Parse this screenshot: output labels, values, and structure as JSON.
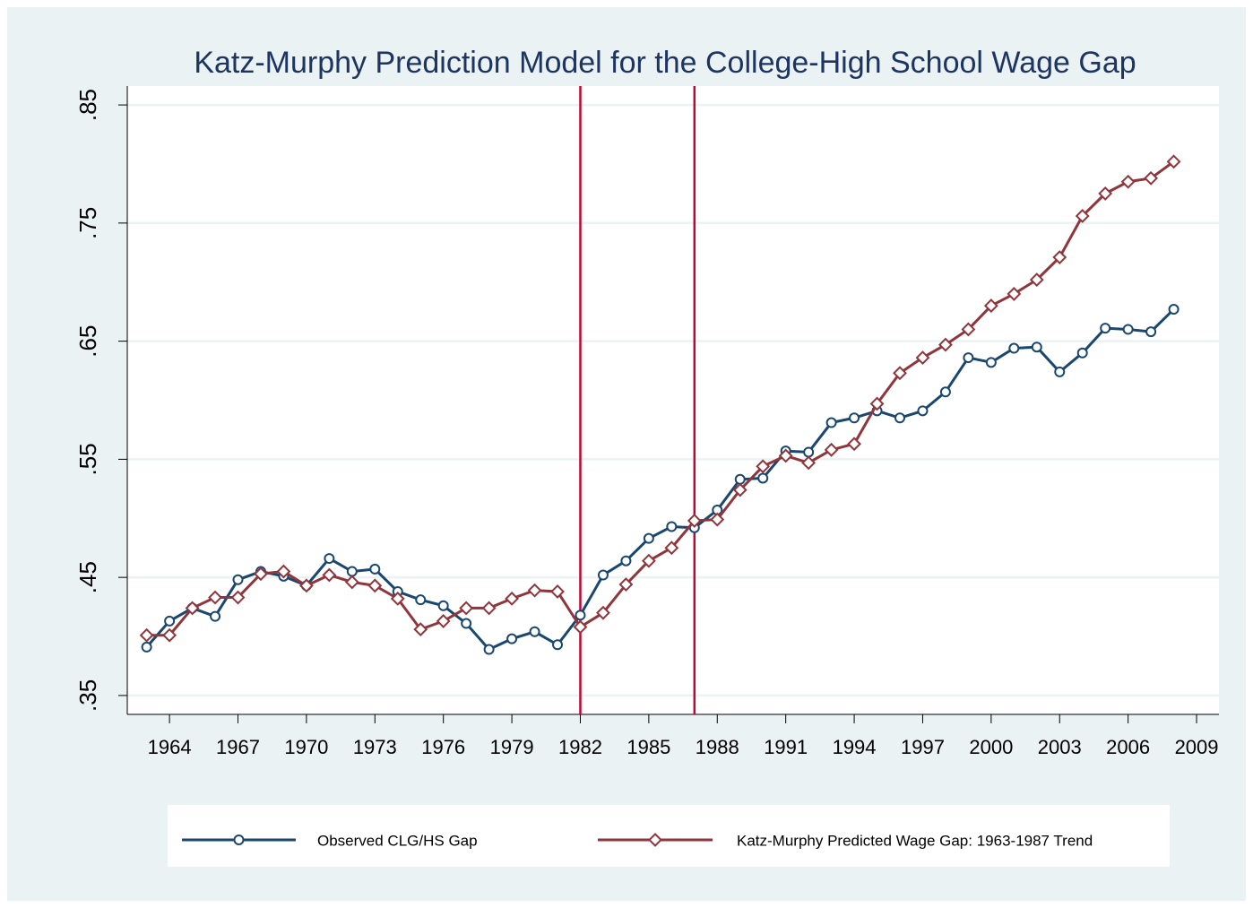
{
  "chart_data": {
    "type": "line",
    "title": "Katz-Murphy Prediction Model for the College-High School Wage Gap",
    "x": [
      1963,
      1964,
      1965,
      1966,
      1967,
      1968,
      1969,
      1970,
      1971,
      1972,
      1973,
      1974,
      1975,
      1976,
      1977,
      1978,
      1979,
      1980,
      1981,
      1982,
      1983,
      1984,
      1985,
      1986,
      1987,
      1988,
      1989,
      1990,
      1991,
      1992,
      1993,
      1994,
      1995,
      1996,
      1997,
      1998,
      1999,
      2000,
      2001,
      2002,
      2003,
      2004,
      2005,
      2006,
      2007,
      2008
    ],
    "series": [
      {
        "name": "Observed CLG/HS Gap",
        "color": "#1a476f",
        "marker": "circle",
        "values": [
          0.391,
          0.413,
          0.424,
          0.417,
          0.448,
          0.455,
          0.451,
          0.443,
          0.466,
          0.455,
          0.457,
          0.438,
          0.431,
          0.426,
          0.411,
          0.389,
          0.398,
          0.404,
          0.393,
          0.418,
          0.452,
          0.464,
          0.483,
          0.493,
          0.492,
          0.507,
          0.533,
          0.534,
          0.557,
          0.556,
          0.581,
          0.585,
          0.591,
          0.585,
          0.591,
          0.607,
          0.636,
          0.632,
          0.644,
          0.645,
          0.624,
          0.64,
          0.661,
          0.66,
          0.658,
          0.677
        ]
      },
      {
        "name": "Katz-Murphy Predicted Wage Gap: 1963-1987 Trend",
        "color": "#90353b",
        "marker": "diamond",
        "values": [
          0.401,
          0.401,
          0.424,
          0.433,
          0.433,
          0.453,
          0.455,
          0.443,
          0.452,
          0.446,
          0.443,
          0.432,
          0.406,
          0.413,
          0.424,
          0.424,
          0.432,
          0.439,
          0.438,
          0.408,
          0.42,
          0.444,
          0.464,
          0.475,
          0.498,
          0.499,
          0.524,
          0.544,
          0.553,
          0.547,
          0.558,
          0.563,
          0.597,
          0.623,
          0.636,
          0.647,
          0.66,
          0.68,
          0.69,
          0.702,
          0.721,
          0.756,
          0.775,
          0.785,
          0.788,
          0.802
        ]
      }
    ],
    "reference_lines": [
      {
        "x": 1982,
        "color": "#c10534"
      },
      {
        "x": 1987,
        "color": "#c10534"
      }
    ],
    "xlim": [
      1962.15,
      2009.98
    ],
    "xticks": [
      1964,
      1967,
      1970,
      1973,
      1976,
      1979,
      1982,
      1985,
      1988,
      1991,
      1994,
      1997,
      2000,
      2003,
      2006,
      2009
    ],
    "ylim": [
      0.334,
      0.866
    ],
    "yticks": [
      {
        "value": 0.35,
        "label": ".35"
      },
      {
        "value": 0.45,
        "label": ".45"
      },
      {
        "value": 0.55,
        "label": ".55"
      },
      {
        "value": 0.65,
        "label": ".65"
      },
      {
        "value": 0.75,
        "label": ".75"
      },
      {
        "value": 0.85,
        "label": ".85"
      }
    ],
    "grid": true,
    "legend": "bottom"
  }
}
